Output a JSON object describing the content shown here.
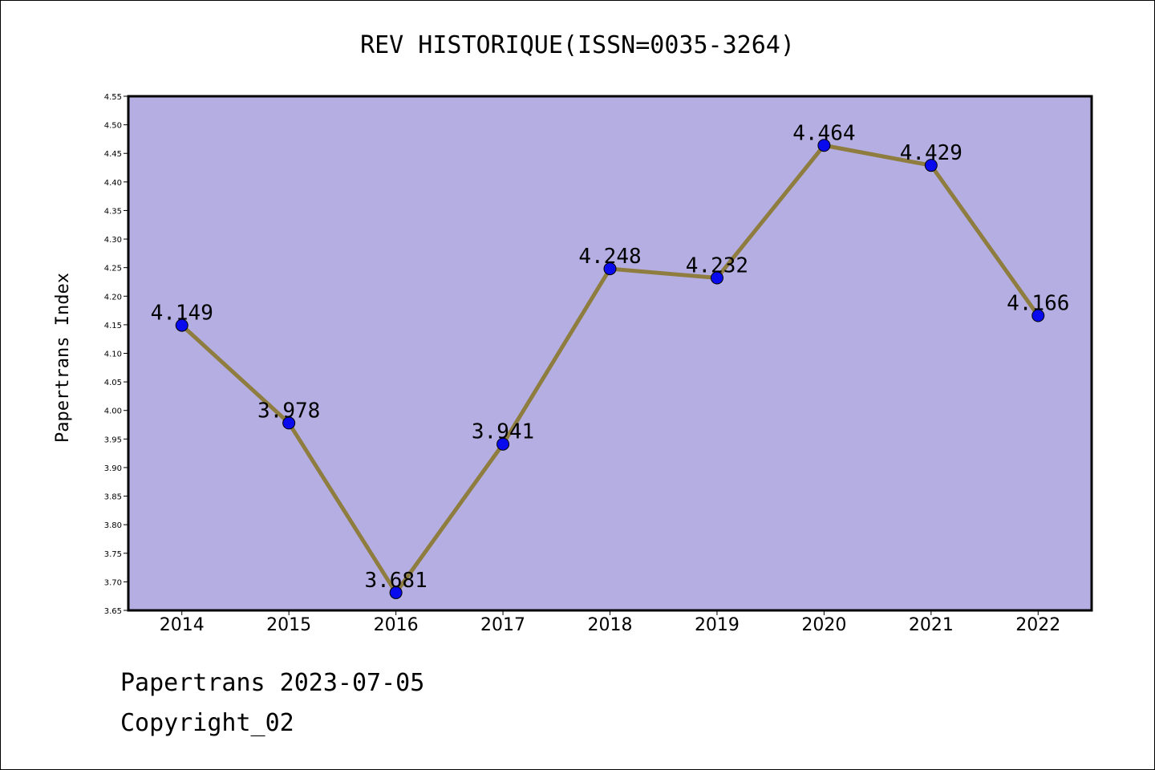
{
  "chart_data": {
    "type": "line",
    "title": "REV HISTORIQUE(ISSN=0035-3264)",
    "xlabel": "",
    "ylabel": "Papertrans Index",
    "categories": [
      "2014",
      "2015",
      "2016",
      "2017",
      "2018",
      "2019",
      "2020",
      "2021",
      "2022"
    ],
    "series": [
      {
        "values": [
          4.149,
          3.978,
          3.681,
          3.941,
          4.248,
          4.232,
          4.464,
          4.429,
          4.166
        ],
        "labels": [
          "4.149",
          "3.978",
          "3.681",
          "3.941",
          "4.248",
          "4.232",
          "4.464",
          "4.429",
          "4.166"
        ]
      }
    ],
    "ylim": [
      3.65,
      4.55
    ],
    "yticks": [
      "3.65",
      "3.70",
      "3.75",
      "3.80",
      "3.85",
      "3.90",
      "3.95",
      "4.00",
      "4.05",
      "4.10",
      "4.15",
      "4.20",
      "4.25",
      "4.30",
      "4.35",
      "4.40",
      "4.45",
      "4.50",
      "4.55"
    ],
    "grid": false,
    "colors": {
      "plot_background": "#b5aee2",
      "line": "#8e7d3f",
      "marker": "#0a0aee",
      "axis": "#000000"
    }
  },
  "footer": {
    "source": "Papertrans 2023-07-05",
    "copyright": "Copyright_02"
  }
}
